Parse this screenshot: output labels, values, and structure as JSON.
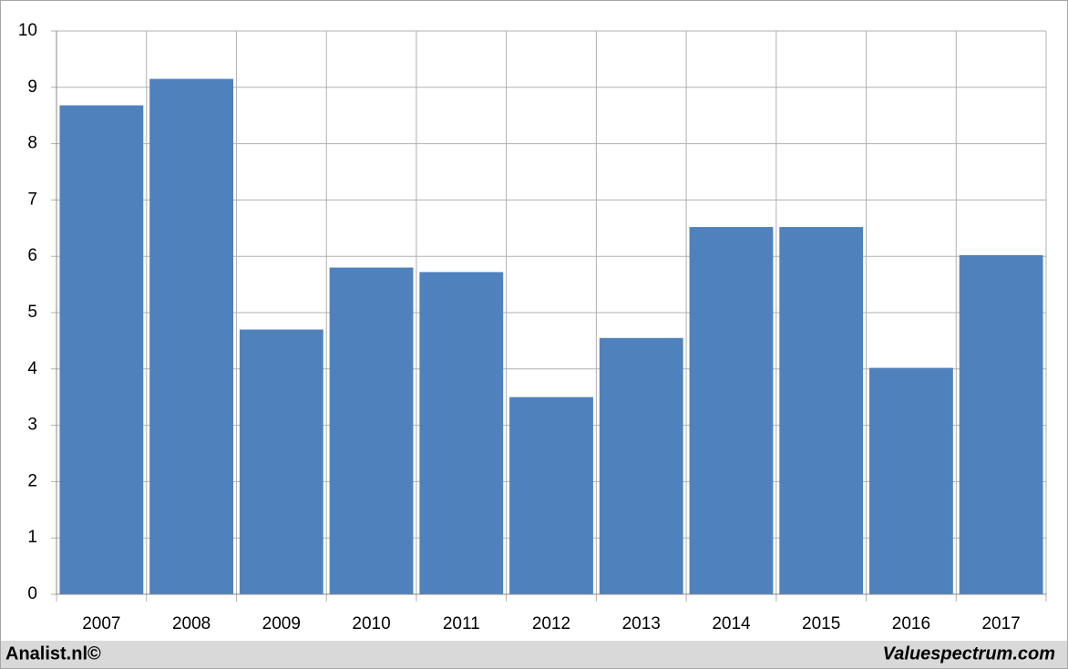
{
  "chart_data": {
    "type": "bar",
    "categories": [
      "2007",
      "2008",
      "2009",
      "2010",
      "2011",
      "2012",
      "2013",
      "2014",
      "2015",
      "2016",
      "2017"
    ],
    "values": [
      8.68,
      9.15,
      4.7,
      5.8,
      5.72,
      3.5,
      4.55,
      6.52,
      6.52,
      4.02,
      6.02
    ],
    "color": "#4f81bd",
    "ylim": [
      0,
      10
    ],
    "yticks": [
      0,
      1,
      2,
      3,
      4,
      5,
      6,
      7,
      8,
      9,
      10
    ],
    "grid": true,
    "annotations": [
      "Analist.nl©",
      "Valuespectrum.com"
    ]
  }
}
